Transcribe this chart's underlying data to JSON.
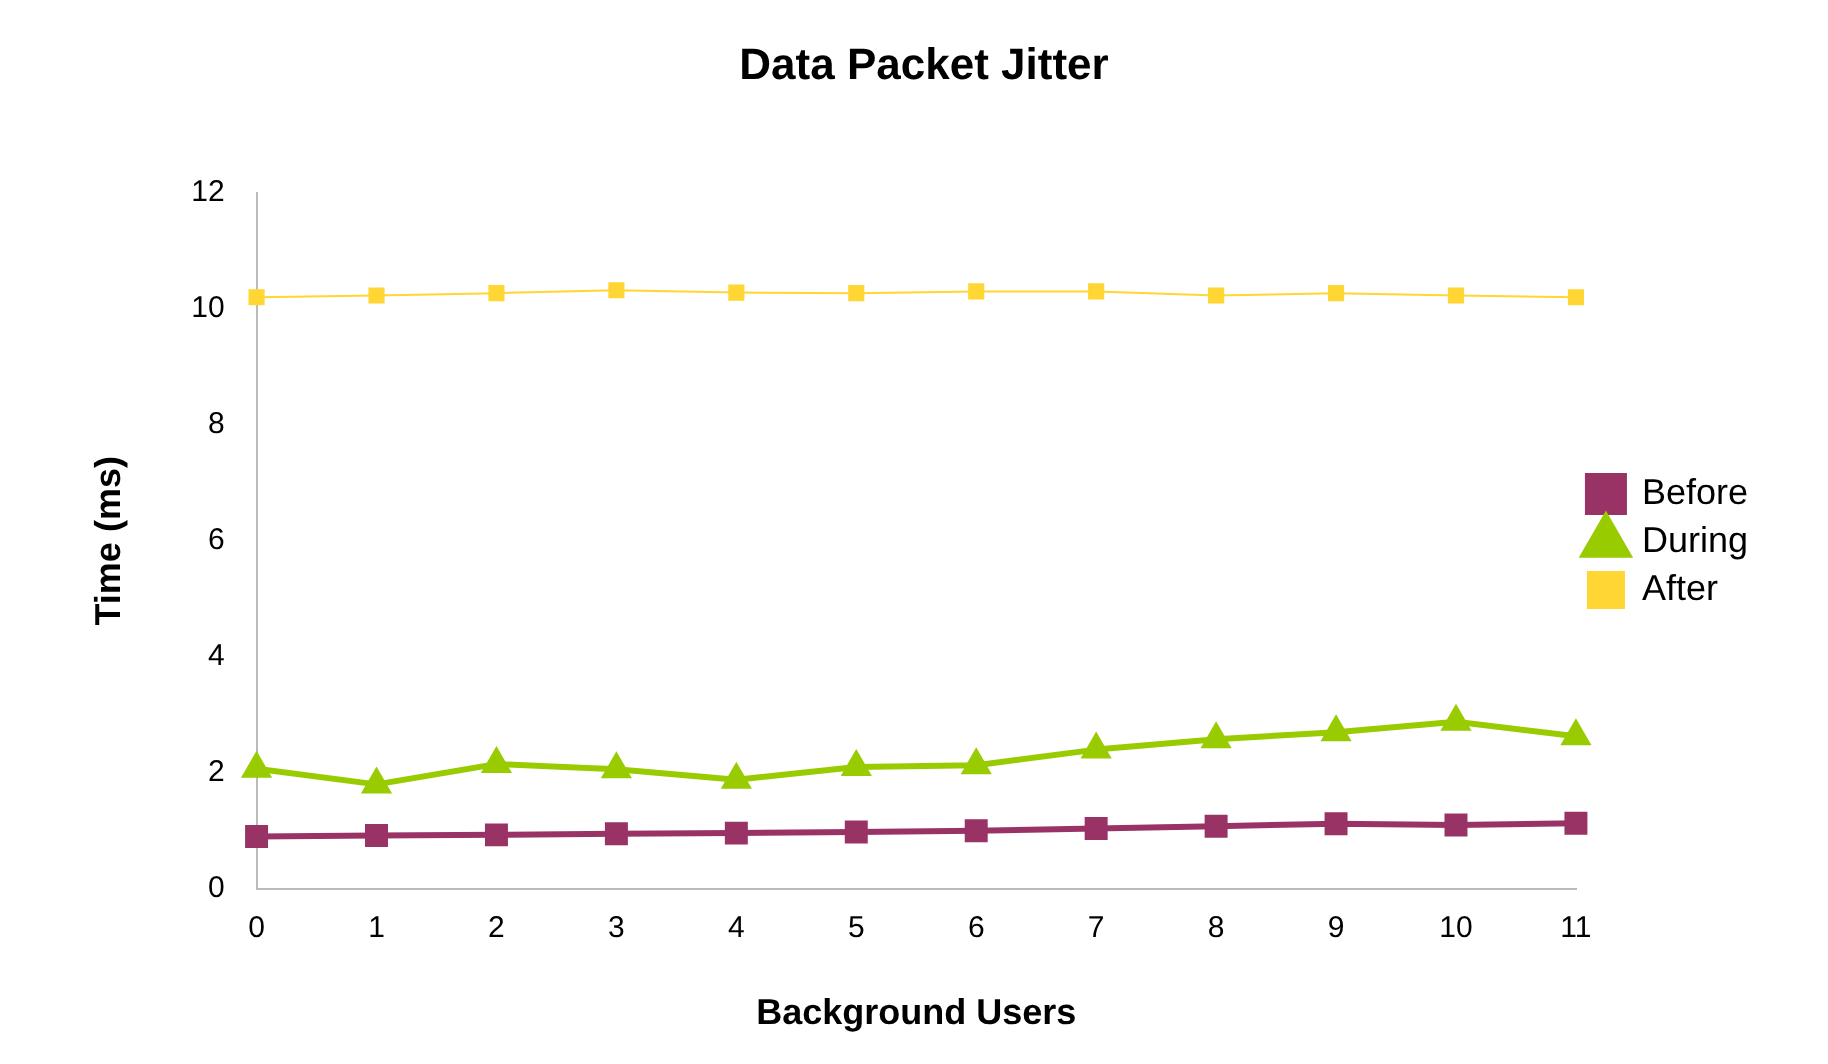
{
  "chart_data": {
    "type": "line",
    "title": "Data Packet Jitter",
    "xlabel": "Background Users",
    "ylabel": "Time (ms)",
    "categories": [
      "0",
      "1",
      "2",
      "3",
      "4",
      "5",
      "6",
      "7",
      "8",
      "9",
      "10",
      "11"
    ],
    "series": [
      {
        "name": "Before",
        "color": "#993366",
        "marker": "square",
        "values": [
          0.9,
          0.92,
          0.93,
          0.95,
          0.96,
          0.98,
          1.0,
          1.04,
          1.08,
          1.12,
          1.1,
          1.13
        ]
      },
      {
        "name": "During",
        "color": "#99cc00",
        "marker": "triangle",
        "values": [
          2.07,
          1.8,
          2.15,
          2.06,
          1.88,
          2.1,
          2.13,
          2.4,
          2.58,
          2.7,
          2.88,
          2.63
        ]
      },
      {
        "name": "After",
        "color": "#ffd633",
        "marker": "square",
        "values": [
          10.2,
          10.23,
          10.27,
          10.32,
          10.28,
          10.27,
          10.3,
          10.3,
          10.23,
          10.27,
          10.23,
          10.2
        ]
      }
    ],
    "ylim": [
      0,
      12
    ],
    "yticks": [
      0,
      2,
      4,
      6,
      8,
      10,
      12
    ],
    "grid": false,
    "legend": "right"
  }
}
